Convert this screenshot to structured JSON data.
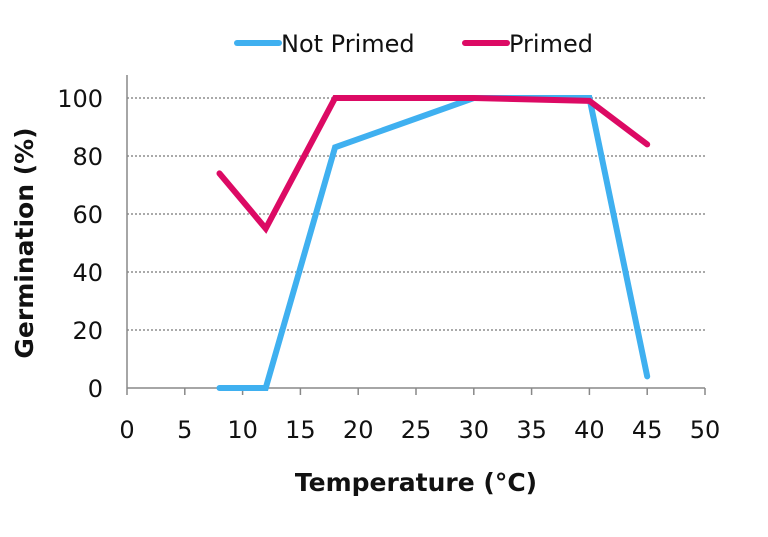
{
  "chart_data": {
    "type": "line",
    "title": "",
    "xlabel": "Temperature (°C)",
    "ylabel": "Germination (%)",
    "xlim": [
      0,
      50
    ],
    "ylim": [
      0,
      100
    ],
    "xticks": [
      0,
      5,
      10,
      15,
      20,
      25,
      30,
      35,
      40,
      45,
      50
    ],
    "yticks": [
      0,
      20,
      40,
      60,
      80,
      100
    ],
    "grid": "horizontal dotted",
    "legend_position": "top",
    "series": [
      {
        "name": "Not Primed",
        "color": "#3fb0f0",
        "x": [
          8,
          12,
          18,
          30,
          40,
          45
        ],
        "y": [
          0,
          0,
          83,
          100,
          100,
          4
        ]
      },
      {
        "name": "Primed",
        "color": "#dc0a64",
        "x": [
          8,
          12,
          18,
          30,
          40,
          45
        ],
        "y": [
          74,
          55,
          100,
          100,
          99,
          84
        ]
      }
    ]
  }
}
